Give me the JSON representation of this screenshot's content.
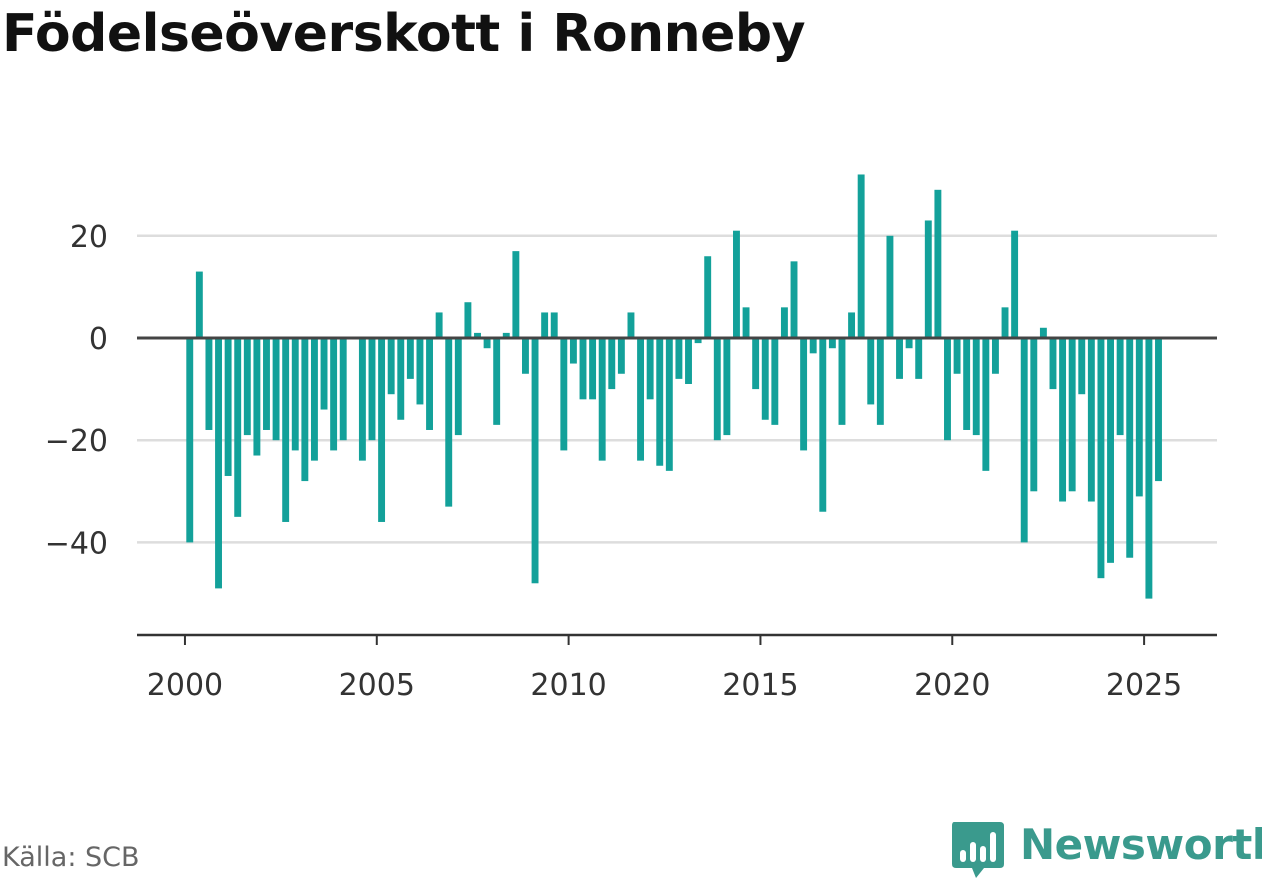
{
  "title": "Födelseöverskott i Ronneby",
  "source": "Källa: SCB",
  "brand": {
    "name": "Newsworthy",
    "icon": "newsworthy-logo-icon",
    "color": "#3a9a8d"
  },
  "colors": {
    "bar": "#13a19a",
    "grid": "#dddddd",
    "zero_line": "#444444",
    "axis": "#333333"
  },
  "chart_data": {
    "type": "bar",
    "title": "Födelseöverskott i Ronneby",
    "xlabel": "",
    "ylabel": "",
    "x_ticks": [
      2000,
      2005,
      2010,
      2015,
      2020,
      2025
    ],
    "y_ticks": [
      20,
      0,
      -20,
      -40
    ],
    "y_tick_labels": [
      "20",
      "0",
      "−20",
      "−40"
    ],
    "ylim": [
      -58,
      40
    ],
    "xlim": [
      1998.75,
      2026.9
    ],
    "grid": true,
    "series": [
      {
        "values": [
          {
            "x": 2000.125,
            "y": -40
          },
          {
            "x": 2000.375,
            "y": 13
          },
          {
            "x": 2000.625,
            "y": -18
          },
          {
            "x": 2000.875,
            "y": -49
          },
          {
            "x": 2001.125,
            "y": -27
          },
          {
            "x": 2001.375,
            "y": -35
          },
          {
            "x": 2001.625,
            "y": -19
          },
          {
            "x": 2001.875,
            "y": -23
          },
          {
            "x": 2002.125,
            "y": -18
          },
          {
            "x": 2002.375,
            "y": -20
          },
          {
            "x": 2002.625,
            "y": -36
          },
          {
            "x": 2002.875,
            "y": -22
          },
          {
            "x": 2003.125,
            "y": -28
          },
          {
            "x": 2003.375,
            "y": -24
          },
          {
            "x": 2003.625,
            "y": -14
          },
          {
            "x": 2003.875,
            "y": -22
          },
          {
            "x": 2004.125,
            "y": -20
          },
          {
            "x": 2004.625,
            "y": -24
          },
          {
            "x": 2004.875,
            "y": -20
          },
          {
            "x": 2005.125,
            "y": -36
          },
          {
            "x": 2005.375,
            "y": -11
          },
          {
            "x": 2005.625,
            "y": -16
          },
          {
            "x": 2005.875,
            "y": -8
          },
          {
            "x": 2006.125,
            "y": -13
          },
          {
            "x": 2006.375,
            "y": -18
          },
          {
            "x": 2006.625,
            "y": 5
          },
          {
            "x": 2006.875,
            "y": -33
          },
          {
            "x": 2007.125,
            "y": -19
          },
          {
            "x": 2007.375,
            "y": 7
          },
          {
            "x": 2007.625,
            "y": 1
          },
          {
            "x": 2007.875,
            "y": -2
          },
          {
            "x": 2008.125,
            "y": -17
          },
          {
            "x": 2008.375,
            "y": 1
          },
          {
            "x": 2008.625,
            "y": 17
          },
          {
            "x": 2008.875,
            "y": -7
          },
          {
            "x": 2009.125,
            "y": -48
          },
          {
            "x": 2009.375,
            "y": 5
          },
          {
            "x": 2009.625,
            "y": 5
          },
          {
            "x": 2009.875,
            "y": -22
          },
          {
            "x": 2010.125,
            "y": -5
          },
          {
            "x": 2010.375,
            "y": -12
          },
          {
            "x": 2010.625,
            "y": -12
          },
          {
            "x": 2010.875,
            "y": -24
          },
          {
            "x": 2011.125,
            "y": -10
          },
          {
            "x": 2011.375,
            "y": -7
          },
          {
            "x": 2011.625,
            "y": 5
          },
          {
            "x": 2011.875,
            "y": -24
          },
          {
            "x": 2012.125,
            "y": -12
          },
          {
            "x": 2012.375,
            "y": -25
          },
          {
            "x": 2012.625,
            "y": -26
          },
          {
            "x": 2012.875,
            "y": -8
          },
          {
            "x": 2013.125,
            "y": -9
          },
          {
            "x": 2013.375,
            "y": -1
          },
          {
            "x": 2013.625,
            "y": 16
          },
          {
            "x": 2013.875,
            "y": -20
          },
          {
            "x": 2014.125,
            "y": -19
          },
          {
            "x": 2014.375,
            "y": 21
          },
          {
            "x": 2014.625,
            "y": 6
          },
          {
            "x": 2014.875,
            "y": -10
          },
          {
            "x": 2015.125,
            "y": -16
          },
          {
            "x": 2015.375,
            "y": -17
          },
          {
            "x": 2015.625,
            "y": 6
          },
          {
            "x": 2015.875,
            "y": 15
          },
          {
            "x": 2016.125,
            "y": -22
          },
          {
            "x": 2016.375,
            "y": -3
          },
          {
            "x": 2016.625,
            "y": -34
          },
          {
            "x": 2016.875,
            "y": -2
          },
          {
            "x": 2017.125,
            "y": -17
          },
          {
            "x": 2017.375,
            "y": 5
          },
          {
            "x": 2017.625,
            "y": 32
          },
          {
            "x": 2017.875,
            "y": -13
          },
          {
            "x": 2018.125,
            "y": -17
          },
          {
            "x": 2018.375,
            "y": 20
          },
          {
            "x": 2018.625,
            "y": -8
          },
          {
            "x": 2018.875,
            "y": -2
          },
          {
            "x": 2019.125,
            "y": -8
          },
          {
            "x": 2019.375,
            "y": 23
          },
          {
            "x": 2019.625,
            "y": 29
          },
          {
            "x": 2019.875,
            "y": -20
          },
          {
            "x": 2020.125,
            "y": -7
          },
          {
            "x": 2020.375,
            "y": -18
          },
          {
            "x": 2020.625,
            "y": -19
          },
          {
            "x": 2020.875,
            "y": -26
          },
          {
            "x": 2021.125,
            "y": -7
          },
          {
            "x": 2021.375,
            "y": 6
          },
          {
            "x": 2021.625,
            "y": 21
          },
          {
            "x": 2021.875,
            "y": -40
          },
          {
            "x": 2022.125,
            "y": -30
          },
          {
            "x": 2022.375,
            "y": 2
          },
          {
            "x": 2022.625,
            "y": -10
          },
          {
            "x": 2022.875,
            "y": -32
          },
          {
            "x": 2023.125,
            "y": -30
          },
          {
            "x": 2023.375,
            "y": -11
          },
          {
            "x": 2023.625,
            "y": -32
          },
          {
            "x": 2023.875,
            "y": -47
          },
          {
            "x": 2024.125,
            "y": -44
          },
          {
            "x": 2024.375,
            "y": -19
          },
          {
            "x": 2024.625,
            "y": -43
          },
          {
            "x": 2024.875,
            "y": -31
          },
          {
            "x": 2025.125,
            "y": -51
          },
          {
            "x": 2025.375,
            "y": -28
          }
        ]
      }
    ]
  }
}
